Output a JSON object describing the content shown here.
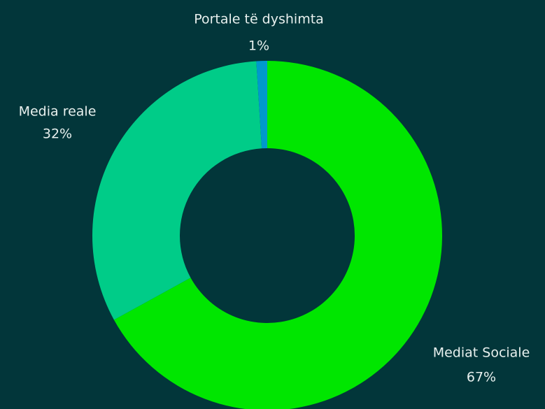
{
  "chart_data": {
    "type": "pie",
    "categories": [
      "Mediat Sociale",
      "Media reale",
      "Portale të dyshimta"
    ],
    "values": [
      67,
      32,
      1
    ],
    "value_labels": [
      "67%",
      "32%",
      "1%"
    ],
    "colors": [
      "#00e600",
      "#00cc88",
      "#0099cc"
    ],
    "donut": true
  }
}
